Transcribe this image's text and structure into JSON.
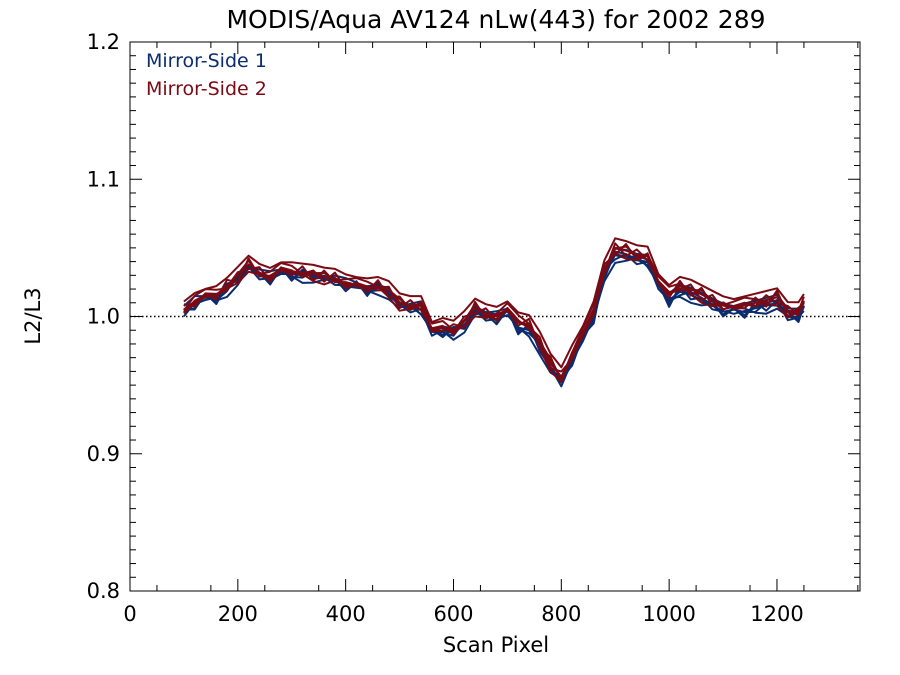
{
  "chart_data": {
    "type": "line",
    "title": "MODIS/Aqua AV124 nLw(443) for 2002 289",
    "xlabel": "Scan Pixel",
    "ylabel": "L2/L3",
    "xlim": [
      0,
      1354
    ],
    "ylim": [
      0.8,
      1.2
    ],
    "xticks": [
      0,
      200,
      400,
      600,
      800,
      1000,
      1200
    ],
    "xtick_labels": [
      "0",
      "200",
      "400",
      "600",
      "800",
      "1000",
      "1200"
    ],
    "yticks": [
      0.8,
      0.9,
      1.0,
      1.1,
      1.2
    ],
    "ytick_labels": [
      "0.8",
      "0.9",
      "1.0",
      "1.1",
      "1.2"
    ],
    "reference_line": 1.0,
    "legend_position": "top-left",
    "colors": {
      "ms1": "#0b2d6e",
      "ms2": "#7a0a14",
      "axis": "#000000"
    },
    "x": [
      100,
      120,
      140,
      160,
      180,
      200,
      220,
      240,
      260,
      280,
      300,
      320,
      340,
      360,
      380,
      400,
      420,
      440,
      460,
      480,
      500,
      520,
      540,
      560,
      580,
      600,
      620,
      640,
      660,
      680,
      700,
      720,
      740,
      760,
      780,
      800,
      820,
      840,
      860,
      880,
      900,
      920,
      940,
      960,
      980,
      1000,
      1020,
      1040,
      1060,
      1080,
      1100,
      1120,
      1140,
      1160,
      1180,
      1200,
      1220,
      1240,
      1250
    ],
    "series": [
      {
        "name": "Mirror-Side 1",
        "color": "#0b2d6e",
        "values": [
          1.003,
          1.009,
          1.012,
          1.014,
          1.02,
          1.028,
          1.036,
          1.03,
          1.027,
          1.031,
          1.031,
          1.03,
          1.03,
          1.028,
          1.026,
          1.022,
          1.021,
          1.02,
          1.021,
          1.018,
          1.008,
          1.006,
          1.005,
          0.986,
          0.99,
          0.988,
          0.994,
          1.004,
          1.0,
          0.998,
          1.001,
          0.992,
          0.99,
          0.978,
          0.962,
          0.952,
          0.968,
          0.982,
          1.0,
          1.03,
          1.045,
          1.044,
          1.041,
          1.04,
          1.02,
          1.012,
          1.018,
          1.016,
          1.012,
          1.008,
          1.004,
          1.002,
          1.004,
          1.006,
          1.008,
          1.01,
          1.0,
          1.0,
          1.004
        ]
      },
      {
        "name": "Mirror-Side 2",
        "color": "#7a0a14",
        "values": [
          1.005,
          1.011,
          1.014,
          1.016,
          1.022,
          1.03,
          1.038,
          1.032,
          1.029,
          1.033,
          1.033,
          1.032,
          1.031,
          1.029,
          1.028,
          1.024,
          1.022,
          1.021,
          1.022,
          1.019,
          1.01,
          1.008,
          1.008,
          0.989,
          0.992,
          0.99,
          0.997,
          1.006,
          1.002,
          1.0,
          1.004,
          0.996,
          0.994,
          0.982,
          0.966,
          0.956,
          0.972,
          0.986,
          1.004,
          1.034,
          1.05,
          1.048,
          1.045,
          1.044,
          1.024,
          1.016,
          1.022,
          1.02,
          1.016,
          1.012,
          1.008,
          1.006,
          1.008,
          1.01,
          1.012,
          1.014,
          1.004,
          1.004,
          1.01
        ]
      }
    ]
  }
}
